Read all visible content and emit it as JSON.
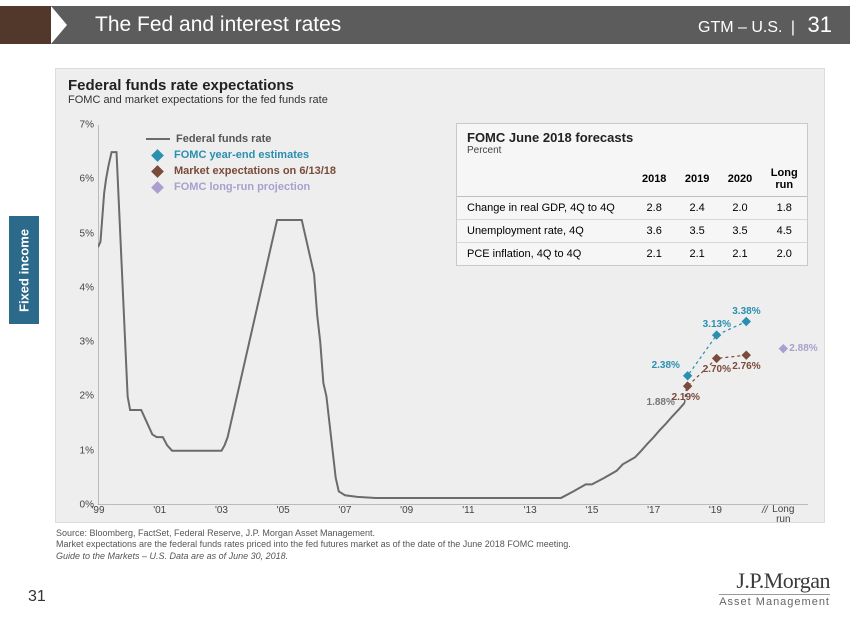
{
  "header": {
    "title": "The Fed and interest rates",
    "right_label": "GTM – U.S.",
    "page": "31",
    "chevron_color": "#51382a",
    "bg_color": "#5c5c5c"
  },
  "side_tab": {
    "label": "Fixed income",
    "bg": "#2b6a8b"
  },
  "chart": {
    "bg": "#eeeeee",
    "title": "Federal funds rate expectations",
    "subtitle": "FOMC and market expectations for the fed funds rate",
    "y": {
      "min": 0,
      "max": 7,
      "step": 1,
      "ticks": [
        "0%",
        "1%",
        "2%",
        "3%",
        "4%",
        "5%",
        "6%",
        "7%"
      ]
    },
    "x": {
      "years": [
        "'99",
        "'01",
        "'03",
        "'05",
        "'07",
        "'09",
        "'11",
        "'13",
        "'15",
        "'17",
        "'19"
      ],
      "long_run_label": "Long\nrun",
      "break_glyph": "//"
    },
    "series": {
      "fed_funds": {
        "color": "#6b6b6b",
        "width": 2,
        "points": [
          [
            0.0,
            4.75
          ],
          [
            0.04,
            4.85
          ],
          [
            0.07,
            5.3
          ],
          [
            0.1,
            5.75
          ],
          [
            0.13,
            6.0
          ],
          [
            0.17,
            6.25
          ],
          [
            0.22,
            6.5
          ],
          [
            0.27,
            6.5
          ],
          [
            0.3,
            6.5
          ],
          [
            0.32,
            6.0
          ],
          [
            0.34,
            5.5
          ],
          [
            0.36,
            5.0
          ],
          [
            0.38,
            4.5
          ],
          [
            0.4,
            4.0
          ],
          [
            0.42,
            3.5
          ],
          [
            0.44,
            3.0
          ],
          [
            0.46,
            2.5
          ],
          [
            0.48,
            2.0
          ],
          [
            0.52,
            1.75
          ],
          [
            0.6,
            1.75
          ],
          [
            0.7,
            1.75
          ],
          [
            0.8,
            1.5
          ],
          [
            0.88,
            1.3
          ],
          [
            0.95,
            1.25
          ],
          [
            1.05,
            1.25
          ],
          [
            1.12,
            1.1
          ],
          [
            1.2,
            1.0
          ],
          [
            1.3,
            1.0
          ],
          [
            1.4,
            1.0
          ],
          [
            1.5,
            1.0
          ],
          [
            1.6,
            1.0
          ],
          [
            1.7,
            1.0
          ],
          [
            1.8,
            1.0
          ],
          [
            1.9,
            1.0
          ],
          [
            2.0,
            1.0
          ],
          [
            2.05,
            1.1
          ],
          [
            2.1,
            1.25
          ],
          [
            2.15,
            1.5
          ],
          [
            2.2,
            1.75
          ],
          [
            2.25,
            2.0
          ],
          [
            2.3,
            2.25
          ],
          [
            2.35,
            2.5
          ],
          [
            2.4,
            2.75
          ],
          [
            2.45,
            3.0
          ],
          [
            2.5,
            3.25
          ],
          [
            2.55,
            3.5
          ],
          [
            2.6,
            3.75
          ],
          [
            2.65,
            4.0
          ],
          [
            2.7,
            4.25
          ],
          [
            2.75,
            4.5
          ],
          [
            2.8,
            4.75
          ],
          [
            2.85,
            5.0
          ],
          [
            2.9,
            5.25
          ],
          [
            3.0,
            5.25
          ],
          [
            3.1,
            5.25
          ],
          [
            3.2,
            5.25
          ],
          [
            3.3,
            5.25
          ],
          [
            3.35,
            5.0
          ],
          [
            3.4,
            4.75
          ],
          [
            3.45,
            4.5
          ],
          [
            3.5,
            4.25
          ],
          [
            3.55,
            3.5
          ],
          [
            3.6,
            3.0
          ],
          [
            3.65,
            2.25
          ],
          [
            3.7,
            2.0
          ],
          [
            3.75,
            1.5
          ],
          [
            3.8,
            1.0
          ],
          [
            3.85,
            0.5
          ],
          [
            3.9,
            0.25
          ],
          [
            4.0,
            0.18
          ],
          [
            4.2,
            0.15
          ],
          [
            4.5,
            0.13
          ],
          [
            5.0,
            0.13
          ],
          [
            5.5,
            0.13
          ],
          [
            6.0,
            0.13
          ],
          [
            6.5,
            0.13
          ],
          [
            7.0,
            0.13
          ],
          [
            7.5,
            0.13
          ],
          [
            7.7,
            0.25
          ],
          [
            7.9,
            0.38
          ],
          [
            8.0,
            0.38
          ],
          [
            8.2,
            0.5
          ],
          [
            8.4,
            0.63
          ],
          [
            8.5,
            0.75
          ],
          [
            8.7,
            0.88
          ],
          [
            8.8,
            1.0
          ],
          [
            8.9,
            1.13
          ],
          [
            9.0,
            1.25
          ],
          [
            9.1,
            1.38
          ],
          [
            9.2,
            1.5
          ],
          [
            9.3,
            1.63
          ],
          [
            9.4,
            1.75
          ],
          [
            9.5,
            1.88
          ]
        ]
      },
      "fomc_est": {
        "color": "#2b8fb0",
        "marker": "diamond",
        "line_dash": "3,3",
        "points": [
          [
            9.55,
            2.38
          ],
          [
            10.02,
            3.13
          ],
          [
            10.5,
            3.38
          ]
        ],
        "labels": [
          "2.38%",
          "3.13%",
          "3.38%"
        ]
      },
      "market_exp": {
        "color": "#7a4a3a",
        "marker": "diamond",
        "line_dash": "3,3",
        "points": [
          [
            9.55,
            2.19
          ],
          [
            10.02,
            2.7
          ],
          [
            10.5,
            2.76
          ]
        ],
        "labels": [
          "2.19%",
          "2.70%",
          "2.76%"
        ]
      },
      "long_run": {
        "color": "#a9a0cf",
        "marker": "diamond",
        "point": [
          11.1,
          2.88
        ],
        "label": "2.88%"
      },
      "start_pt": {
        "color": "#777",
        "point": [
          9.5,
          1.88
        ],
        "label": "1.88%"
      }
    },
    "legend": [
      {
        "type": "line",
        "color": "#6b6b6b",
        "label": "Federal funds rate"
      },
      {
        "type": "diamond",
        "color": "#2b8fb0",
        "label": "FOMC year-end estimates"
      },
      {
        "type": "diamond",
        "color": "#7a4a3a",
        "label": "Market expectations on 6/13/18"
      },
      {
        "type": "diamond",
        "color": "#a9a0cf",
        "label": "FOMC long-run projection"
      }
    ],
    "x_domain": [
      0,
      11.5
    ]
  },
  "forecast": {
    "title": "FOMC June 2018 forecasts",
    "subtitle": "Percent",
    "columns": [
      "",
      "2018",
      "2019",
      "2020",
      "Long run"
    ],
    "rows": [
      [
        "Change in real GDP, 4Q to 4Q",
        "2.8",
        "2.4",
        "2.0",
        "1.8"
      ],
      [
        "Unemployment rate, 4Q",
        "3.6",
        "3.5",
        "3.5",
        "4.5"
      ],
      [
        "PCE inflation, 4Q to 4Q",
        "2.1",
        "2.1",
        "2.1",
        "2.0"
      ]
    ]
  },
  "source": {
    "line1": "Source: Bloomberg, FactSet, Federal Reserve, J.P. Morgan Asset Management.",
    "line2": "Market expectations are the federal funds rates priced into the fed futures market as of the date of the June 2018 FOMC meeting.",
    "line3": "Guide to the Markets – U.S. Data are as of June 30, 2018."
  },
  "footer": {
    "page": "31",
    "logo_main": "J.P.Morgan",
    "logo_sub": "Asset Management"
  }
}
